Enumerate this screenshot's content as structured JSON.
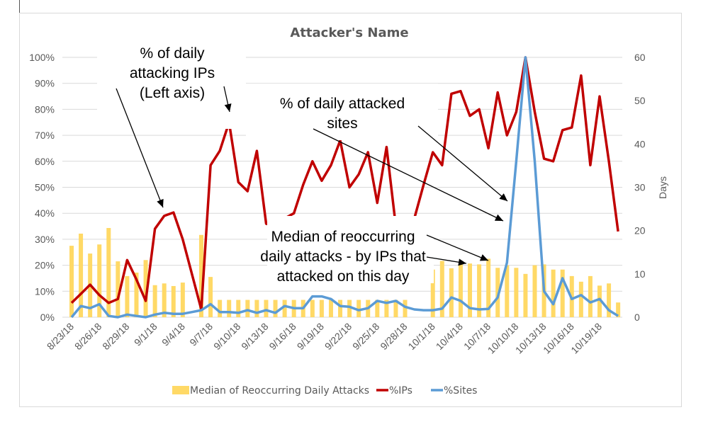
{
  "chart_data": {
    "type": "bar+line",
    "title": "Attacker's Name",
    "ylabel_left": "",
    "ylabel_right": "Days",
    "ylim_left": [
      0,
      100
    ],
    "ylim_right": [
      0,
      60
    ],
    "yticks_left": [
      "0%",
      "10%",
      "20%",
      "30%",
      "40%",
      "50%",
      "60%",
      "70%",
      "80%",
      "90%",
      "100%"
    ],
    "yticks_right": [
      "0",
      "10",
      "20",
      "30",
      "40",
      "50",
      "60"
    ],
    "grid": true,
    "legend_position": "bottom",
    "categories": [
      "8/23/18",
      "8/24/18",
      "8/25/18",
      "8/26/18",
      "8/27/18",
      "8/28/18",
      "8/29/18",
      "8/30/18",
      "8/31/18",
      "9/1/18",
      "9/2/18",
      "9/3/18",
      "9/4/18",
      "9/5/18",
      "9/6/18",
      "9/7/18",
      "9/8/18",
      "9/9/18",
      "9/10/18",
      "9/11/18",
      "9/12/18",
      "9/13/18",
      "9/14/18",
      "9/15/18",
      "9/16/18",
      "9/17/18",
      "9/18/18",
      "9/19/18",
      "9/20/18",
      "9/21/18",
      "9/22/18",
      "9/23/18",
      "9/24/18",
      "9/25/18",
      "9/26/18",
      "9/27/18",
      "9/28/18",
      "9/29/18",
      "9/30/18",
      "10/1/18",
      "10/2/18",
      "10/3/18",
      "10/4/18",
      "10/5/18",
      "10/6/18",
      "10/7/18",
      "10/8/18",
      "10/9/18",
      "10/10/18",
      "10/11/18",
      "10/12/18",
      "10/13/18",
      "10/14/18",
      "10/15/18",
      "10/16/18",
      "10/17/18",
      "10/18/18",
      "10/19/18",
      "10/20/18",
      "10/21/18"
    ],
    "xtick_labels": [
      "8/23/18",
      "8/26/18",
      "8/29/18",
      "9/1/18",
      "9/4/18",
      "9/7/18",
      "9/10/18",
      "9/13/18",
      "9/16/18",
      "9/19/18",
      "9/22/18",
      "9/25/18",
      "9/28/18",
      "10/1/18",
      "10/4/18",
      "10/7/18",
      "10/10/18",
      "10/13/18",
      "10/16/18",
      "10/19/18"
    ],
    "series": [
      {
        "name": "Median of Reoccurring Daily Attacks",
        "type": "bar",
        "axis": "right",
        "color": "#FFD966",
        "values": [
          16.5,
          19.3,
          14.7,
          16.8,
          20.6,
          12.9,
          9.5,
          10.3,
          13.2,
          7.4,
          7.8,
          7.2,
          8,
          0,
          19,
          9.3,
          4,
          4,
          4,
          4,
          4,
          4,
          4,
          4,
          4,
          4,
          4,
          4,
          4,
          4,
          4,
          4,
          4,
          4,
          4,
          4,
          4,
          0,
          0,
          11,
          13,
          11.3,
          12.2,
          12.4,
          12.2,
          13.5,
          11.4,
          12,
          11.4,
          10,
          12,
          12.2,
          11,
          11,
          9.5,
          8.2,
          9.5,
          7.3,
          7.8,
          3.4
        ]
      },
      {
        "name": "%IPs",
        "type": "line",
        "axis": "left",
        "color": "#C00000",
        "values": [
          5.5,
          9,
          12.5,
          8.5,
          5.5,
          7,
          22,
          14.5,
          6.3,
          34,
          39,
          40.3,
          30,
          16.5,
          3,
          58.5,
          64,
          75,
          52,
          48.5,
          64,
          36,
          35,
          38,
          40,
          51,
          60,
          52.5,
          58.5,
          68,
          50,
          55,
          63.5,
          44,
          65.5,
          35,
          30,
          38,
          51,
          63.5,
          58.5,
          86,
          87,
          77.5,
          80,
          65,
          86.5,
          70,
          79,
          100,
          79,
          61,
          60,
          72,
          73,
          93,
          58.5,
          85,
          60,
          33
        ]
      },
      {
        "name": "%Sites",
        "type": "line",
        "axis": "left",
        "color": "#5B9BD5",
        "values": [
          0,
          4.3,
          3.5,
          5,
          0.5,
          0,
          1,
          0.5,
          0,
          1,
          1.7,
          1.3,
          1.3,
          2,
          2.7,
          5,
          2,
          2,
          1.7,
          2.7,
          1.7,
          2.7,
          1.7,
          4.3,
          3.5,
          3.5,
          8,
          8,
          7,
          4.3,
          4,
          2.7,
          3.5,
          6.3,
          5.5,
          6.3,
          4,
          3,
          2.7,
          2.7,
          3.3,
          7.6,
          6.3,
          3.5,
          3,
          3.2,
          7.6,
          21,
          60,
          100,
          60,
          10,
          5,
          15,
          7,
          8.5,
          5.7,
          7,
          2.7,
          0.5
        ]
      }
    ],
    "annotations": {
      "ips": [
        "% of daily",
        "attacking IPs",
        "(Left axis)"
      ],
      "sites": [
        "% of daily attacked",
        "sites"
      ],
      "median": [
        "Median of reoccurring",
        "daily attacks - by IPs that",
        "attacked on this day"
      ]
    }
  }
}
